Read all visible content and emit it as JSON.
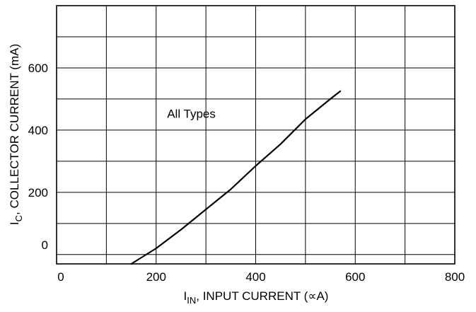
{
  "chart_data": {
    "type": "line",
    "title": "",
    "xlabel": {
      "main": "I",
      "sub": "IN",
      "rest": ", INPUT CURRENT (∝A)"
    },
    "ylabel": {
      "main": "I",
      "sub": "C",
      "rest": ", COLLECTOR CURRENT (mA)"
    },
    "xlim": [
      0,
      800
    ],
    "ylim": [
      -30,
      800
    ],
    "x_ticks": [
      0,
      200,
      400,
      600,
      800
    ],
    "x_tick_labels": [
      "0",
      "200",
      "400",
      "600",
      "800"
    ],
    "y_ticks": [
      0,
      200,
      400,
      600
    ],
    "y_tick_labels": [
      "0",
      "200",
      "400",
      "600"
    ],
    "grid": true,
    "annotations": [
      {
        "text": "All Types",
        "x": 222,
        "y": 440
      }
    ],
    "series": [
      {
        "x": [
          150,
          200,
          250,
          300,
          350,
          400,
          450,
          500,
          550,
          570
        ],
        "y": [
          -30,
          20,
          80,
          145,
          210,
          285,
          355,
          435,
          500,
          525
        ]
      }
    ]
  }
}
